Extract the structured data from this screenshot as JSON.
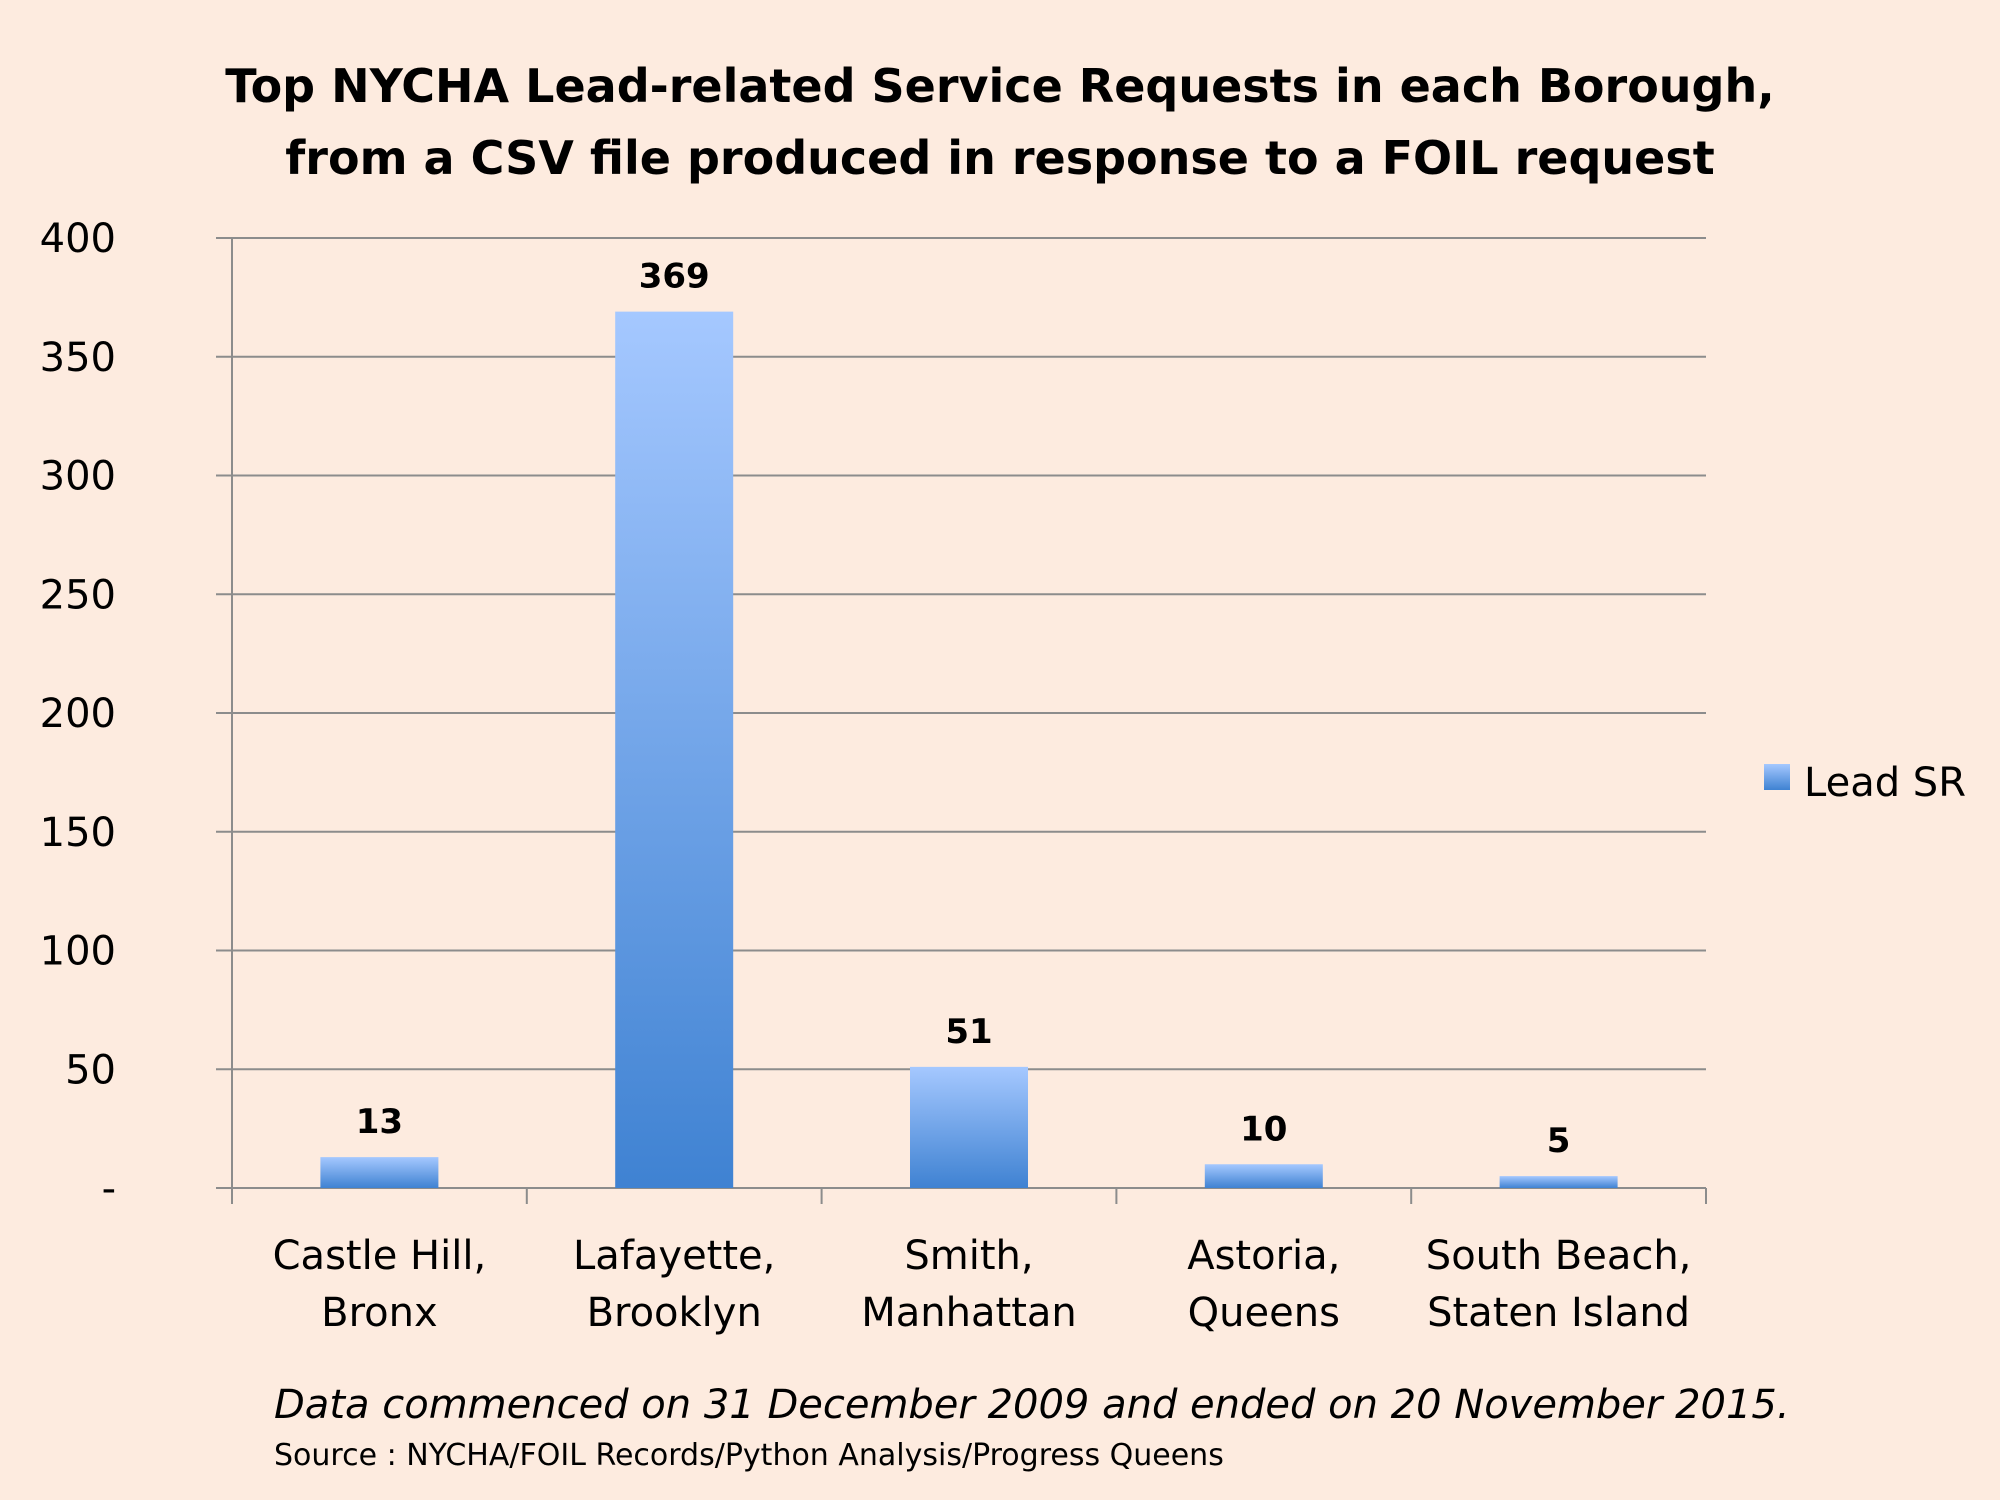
{
  "chart_data": {
    "type": "bar",
    "title_lines": [
      "Top NYCHA Lead-related Service Requests in each Borough,",
      "from a CSV file produced in response to a FOIL request"
    ],
    "categories": [
      [
        "Castle Hill,",
        "Bronx"
      ],
      [
        "Lafayette,",
        "Brooklyn"
      ],
      [
        "Smith,",
        "Manhattan"
      ],
      [
        "Astoria,",
        "Queens"
      ],
      [
        "South Beach,",
        "Staten Island"
      ]
    ],
    "series": [
      {
        "name": "Lead SR",
        "values": [
          13,
          369,
          51,
          10,
          5
        ]
      }
    ],
    "data_labels": [
      "13",
      "369",
      "51",
      "10",
      "5"
    ],
    "ylim": [
      0,
      400
    ],
    "yticks": [
      0,
      50,
      100,
      150,
      200,
      250,
      300,
      350,
      400
    ],
    "ytick_labels": [
      "-",
      "50",
      "100",
      "150",
      "200",
      "250",
      "300",
      "350",
      "400"
    ],
    "xlabel": "",
    "ylabel": "",
    "grid": true,
    "legend_position": "right",
    "colors": {
      "bar_top": "#a5c8ff",
      "bar_bottom": "#3f82d2",
      "grid": "#8c8c8c",
      "background": "#fdebdf"
    }
  },
  "footer": {
    "note": "Data commenced on 31 December 2009 and ended on 20 November 2015.",
    "source": "Source : NYCHA/FOIL Records/Python Analysis/Progress Queens"
  }
}
